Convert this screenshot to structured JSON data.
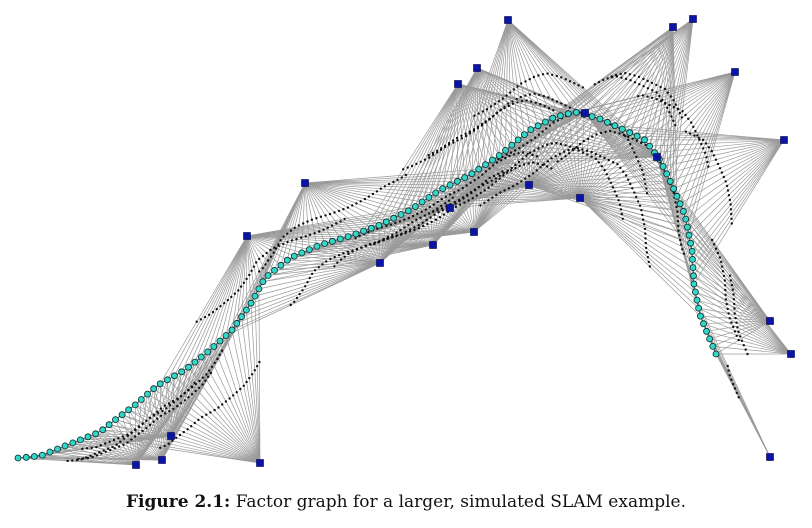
{
  "figure": {
    "label": "Figure 2.1:",
    "caption": "Factor graph for a larger, simulated SLAM example."
  },
  "colors": {
    "factor_edge": "#9a9a9a",
    "factor_node": "#111111",
    "pose_fill": "#33d6c8",
    "pose_stroke": "#0a2a2a",
    "landmark_fill": "#0a14a8",
    "landmark_stroke": "#000044"
  }
}
